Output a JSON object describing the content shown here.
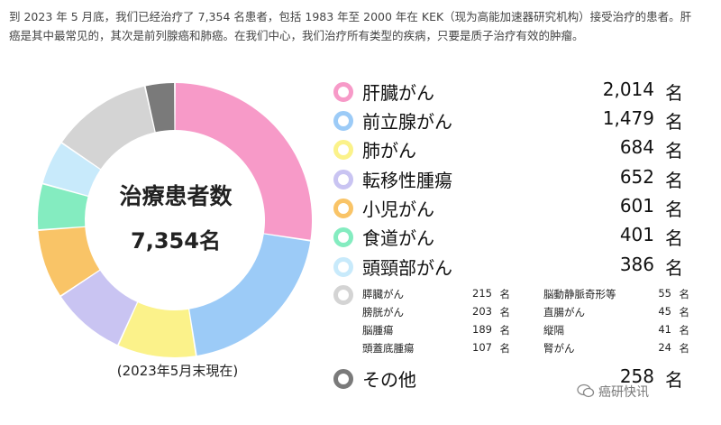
{
  "intro": {
    "line1": "到 2023 年 5 月底，我们已经治疗了 7,354 名患者，包括 1983 年至 2000 年在 KEK（现为高能加速器研究机构）接受治疗的患者。肝",
    "line2": "癌是其中最常见的，其次是前列腺癌和肺癌。在我们中心，我们治疗所有类型的疾病，只要是质子治疗有效的肿瘤。"
  },
  "center": {
    "title": "治療患者数",
    "total": "7,354名"
  },
  "asof": "(2023年5月末現在)",
  "unit": "名",
  "small_unit": "名",
  "watermark": "癌研快讯",
  "colors": {
    "liver": "#f79ac8",
    "prostate": "#9ccbf7",
    "lung": "#fbf28a",
    "metastatic": "#c9c4f2",
    "pediatric": "#f9c467",
    "esophagus": "#84ecc0",
    "headneck": "#c8eafb",
    "others_small": "#d4d4d4",
    "other": "#7a7a7a"
  },
  "chart_data": {
    "type": "pie",
    "title": "治療患者数",
    "total": 7354,
    "categories": [
      "肝臓がん",
      "前立腺がん",
      "肺がん",
      "転移性腫瘍",
      "小児がん",
      "食道がん",
      "頭頸部がん",
      "膵臓がん・膀胱がん・脳腫瘍・頭蓋底腫瘍・脳動静脈奇形等・直腸がん・縦隔・腎がん",
      "その他"
    ],
    "values": [
      2014,
      1479,
      684,
      652,
      601,
      401,
      386,
      879,
      258
    ],
    "major": [
      {
        "name": "肝臓がん",
        "value": "2,014",
        "color": "#f79ac8"
      },
      {
        "name": "前立腺がん",
        "value": "1,479",
        "color": "#9ccbf7"
      },
      {
        "name": "肺がん",
        "value": "684",
        "color": "#fbf28a"
      },
      {
        "name": "転移性腫瘍",
        "value": "652",
        "color": "#c9c4f2"
      },
      {
        "name": "小児がん",
        "value": "601",
        "color": "#f9c467"
      },
      {
        "name": "食道がん",
        "value": "401",
        "color": "#84ecc0"
      },
      {
        "name": "頭頸部がん",
        "value": "386",
        "color": "#c8eafb"
      }
    ],
    "minor_left": [
      {
        "name": "膵臓がん",
        "value": "215"
      },
      {
        "name": "膀胱がん",
        "value": "203"
      },
      {
        "name": "脳腫瘍",
        "value": "189"
      },
      {
        "name": "頭蓋底腫瘍",
        "value": "107"
      }
    ],
    "minor_right": [
      {
        "name": "脳動静脈奇形等",
        "value": "55"
      },
      {
        "name": "直腸がん",
        "value": "45"
      },
      {
        "name": "縦隔",
        "value": "41"
      },
      {
        "name": "腎がん",
        "value": "24"
      }
    ],
    "other": {
      "name": "その他",
      "value": "258",
      "color": "#7a7a7a"
    }
  }
}
